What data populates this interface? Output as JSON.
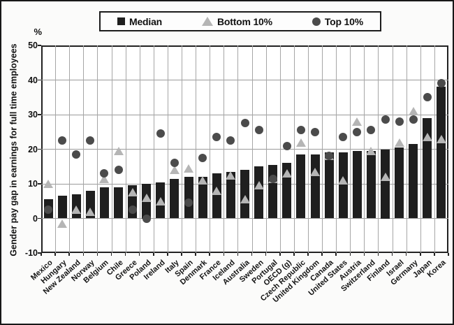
{
  "axes": {
    "y_unit": "%",
    "y_title": "Gender pay gap in earnings for full time employees",
    "yticks": [
      50,
      40,
      30,
      20,
      10,
      0,
      -10
    ]
  },
  "chart_data": {
    "type": "bar",
    "title": "",
    "xlabel": "",
    "ylabel": "Gender pay gap in earnings for full time employees",
    "y_unit": "%",
    "ylim": [
      -10,
      50
    ],
    "yticks": [
      50,
      40,
      30,
      20,
      10,
      0,
      -10
    ],
    "grid": true,
    "legend_position": "top",
    "categories": [
      "Mexico",
      "Hungary",
      "New Zealand",
      "Norway",
      "Belgium",
      "Chile",
      "Greece",
      "Poland",
      "Ireland",
      "Italy",
      "Spain",
      "Denmark",
      "France",
      "Iceland",
      "Australia",
      "Sweden",
      "Portugal",
      "OECD (g)",
      "Czech Republic",
      "United Kingdom",
      "Canada",
      "United States",
      "Austria",
      "Switzerland",
      "Finland",
      "Israel",
      "Germany",
      "Japan",
      "Korea"
    ],
    "series": [
      {
        "name": "Median",
        "type": "bar",
        "marker": "square",
        "color": "#1f1f1f",
        "values": [
          5.5,
          6.5,
          7,
          8,
          9,
          9,
          9.5,
          10,
          10.5,
          11.5,
          12,
          12,
          13,
          13.5,
          14,
          15,
          15.5,
          16,
          18.5,
          18.5,
          19,
          19,
          19.5,
          19.5,
          20,
          20.5,
          21.5,
          29,
          38
        ]
      },
      {
        "name": "Bottom 10%",
        "type": "scatter",
        "marker": "triangle",
        "color": "#b5b5b5",
        "values": [
          10,
          -1.5,
          2.5,
          2,
          11.5,
          19.5,
          7.5,
          6,
          5,
          14,
          14.5,
          11,
          8,
          12.5,
          5.5,
          9.5,
          11.5,
          13,
          22,
          13.5,
          18,
          11,
          28,
          19.5,
          12,
          22,
          31,
          23.5,
          23
        ]
      },
      {
        "name": "Top 10%",
        "type": "scatter",
        "marker": "circle",
        "color": "#4b4b4b",
        "values": [
          2.5,
          22.5,
          18.5,
          22.5,
          13,
          14,
          2.5,
          0,
          24.5,
          16,
          4.5,
          17.5,
          23.5,
          22.5,
          27.5,
          25.5,
          11.5,
          21,
          25.5,
          25,
          18,
          23.5,
          25,
          25.5,
          28.5,
          28,
          28.5,
          35,
          39
        ]
      }
    ]
  }
}
